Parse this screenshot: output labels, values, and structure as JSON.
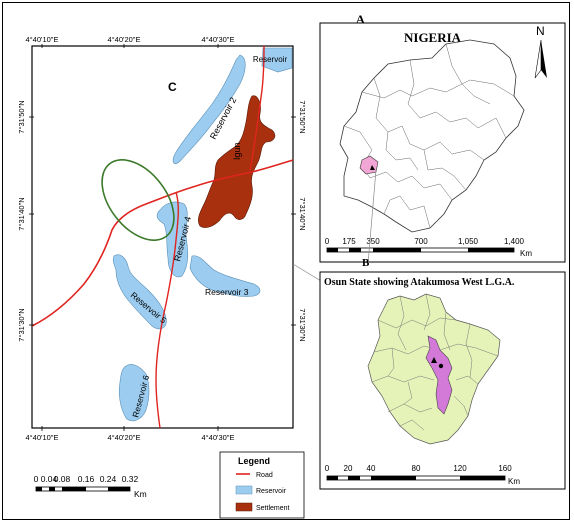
{
  "panels": {
    "a_label": "A",
    "b_label": "B",
    "c_label": "C"
  },
  "nigeria_map": {
    "title": "NIGERIA",
    "north_letter": "N",
    "scale_ticks": [
      "0",
      "175",
      "350",
      "700",
      "1,050",
      "1,400"
    ],
    "scale_unit": "Km"
  },
  "osun_map": {
    "title": "Osun State showing Atakumosa West L.G.A.",
    "scale_ticks": [
      "0",
      "20",
      "40",
      "80",
      "120",
      "160"
    ],
    "scale_unit": "Km"
  },
  "detail_map": {
    "top_ticks": [
      "4°40'10\"E",
      "4°40'20\"E",
      "4°40'30\"E"
    ],
    "bottom_ticks": [
      "4°40'10\"E",
      "4°40'20\"E",
      "4°40'30\"E"
    ],
    "left_ticks": [
      "7°31'50\"N",
      "7°31'40\"N",
      "7°31'30\"N"
    ],
    "right_ticks": [
      "7°31'50\"N",
      "7°31'40\"N",
      "7°31'30\"N"
    ],
    "labels": {
      "reservoir_top": "Reservoir",
      "reservoir_2": "Reservoir 2",
      "reservoir_3": "Reservoir 3",
      "reservoir_4": "Reservoir 4",
      "reservoir_5": "Reservoir 5",
      "reservoir_6": "Reservoir 6",
      "settlement": "Igun"
    },
    "scale_ticks": [
      "0",
      "0.04",
      "0.08",
      "0.16",
      "0.24",
      "0.32"
    ],
    "scale_unit": "Km"
  },
  "legend": {
    "title": "Legend",
    "items": [
      {
        "label": "Road",
        "color": "#e0241f"
      },
      {
        "label": "Reservoir",
        "color": "#9ccdf0"
      },
      {
        "label": "Settlement",
        "color": "#a8300e"
      }
    ]
  }
}
